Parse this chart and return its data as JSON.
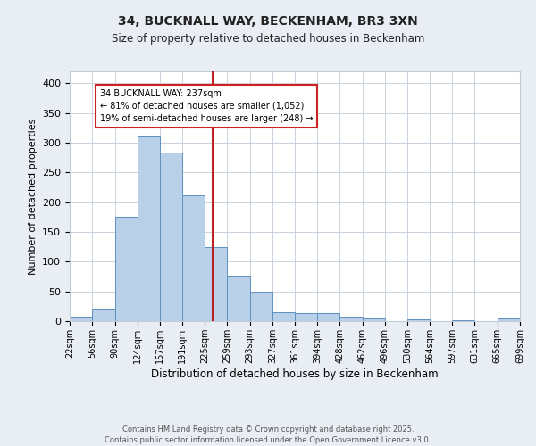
{
  "title1": "34, BUCKNALL WAY, BECKENHAM, BR3 3XN",
  "title2": "Size of property relative to detached houses in Beckenham",
  "xlabel": "Distribution of detached houses by size in Beckenham",
  "ylabel": "Number of detached properties",
  "bin_labels": [
    "22sqm",
    "56sqm",
    "90sqm",
    "124sqm",
    "157sqm",
    "191sqm",
    "225sqm",
    "259sqm",
    "293sqm",
    "327sqm",
    "361sqm",
    "394sqm",
    "428sqm",
    "462sqm",
    "496sqm",
    "530sqm",
    "564sqm",
    "597sqm",
    "631sqm",
    "665sqm",
    "699sqm"
  ],
  "bin_values": [
    7,
    21,
    175,
    310,
    283,
    212,
    125,
    76,
    49,
    15,
    13,
    14,
    8,
    4,
    0,
    3,
    0,
    1,
    0,
    4
  ],
  "bin_edges": [
    22,
    56,
    90,
    124,
    157,
    191,
    225,
    259,
    293,
    327,
    361,
    394,
    428,
    462,
    496,
    530,
    564,
    597,
    631,
    665,
    699
  ],
  "bar_color": "#b8d0e8",
  "bar_edge_color": "#6090c0",
  "property_value": 237,
  "red_line_color": "#bb2222",
  "annotation_text": "34 BUCKNALL WAY: 237sqm\n← 81% of detached houses are smaller (1,052)\n19% of semi-detached houses are larger (248) →",
  "annotation_box_color": "#ffffff",
  "annotation_box_edge": "#cc2222",
  "footer1": "Contains HM Land Registry data © Crown copyright and database right 2025.",
  "footer2": "Contains public sector information licensed under the Open Government Licence v3.0.",
  "bg_color": "#e8eef4",
  "plot_bg_color": "#ffffff",
  "grid_color": "#c0ccd8",
  "ylim": [
    0,
    420
  ],
  "yticks": [
    0,
    50,
    100,
    150,
    200,
    250,
    300,
    350,
    400
  ]
}
